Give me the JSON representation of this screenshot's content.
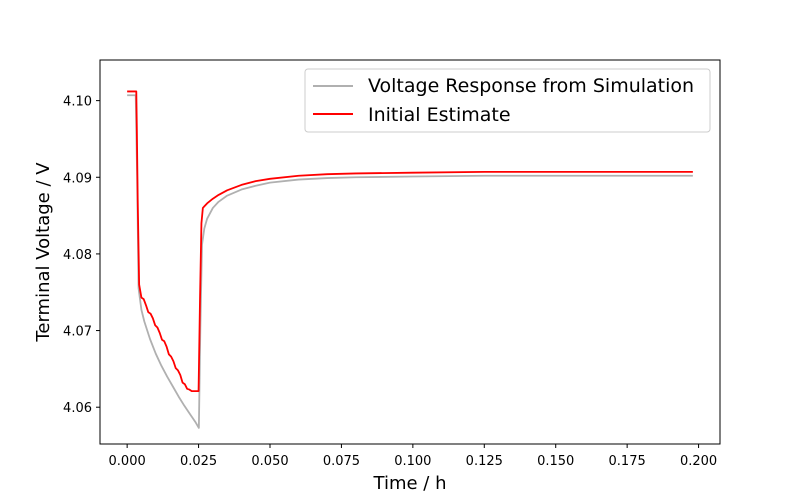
{
  "chart_data": {
    "type": "line",
    "xlabel": "Time / h",
    "ylabel": "Terminal Voltage / V",
    "xlim": [
      -0.0095,
      0.2075
    ],
    "ylim": [
      4.0552,
      4.1053
    ],
    "xticks": [
      0.0,
      0.025,
      0.05,
      0.075,
      0.1,
      0.125,
      0.15,
      0.175,
      0.2
    ],
    "xtick_labels": [
      "0.000",
      "0.025",
      "0.050",
      "0.075",
      "0.100",
      "0.125",
      "0.150",
      "0.175",
      "0.200"
    ],
    "yticks": [
      4.06,
      4.07,
      4.08,
      4.09,
      4.1
    ],
    "ytick_labels": [
      "4.06",
      "4.07",
      "4.08",
      "4.09",
      "4.10"
    ],
    "grid": false,
    "legend_position": "top-right",
    "series": [
      {
        "name": "Voltage Response from Simulation",
        "color": "#b0b0b0",
        "x": [
          0.0,
          0.003,
          0.0035,
          0.004,
          0.005,
          0.006,
          0.008,
          0.01,
          0.012,
          0.014,
          0.016,
          0.018,
          0.02,
          0.022,
          0.024,
          0.0251,
          0.0256,
          0.0262,
          0.027,
          0.028,
          0.03,
          0.032,
          0.035,
          0.04,
          0.045,
          0.05,
          0.06,
          0.07,
          0.08,
          0.1,
          0.125,
          0.15,
          0.175,
          0.198
        ],
        "y": [
          4.1007,
          4.1007,
          4.09,
          4.0755,
          4.0727,
          4.0712,
          4.0689,
          4.067,
          4.0654,
          4.064,
          4.0627,
          4.0614,
          4.0602,
          4.0591,
          4.058,
          4.0573,
          4.07,
          4.0812,
          4.0833,
          4.0846,
          4.086,
          4.0868,
          4.0876,
          4.0884,
          4.0889,
          4.0893,
          4.0897,
          4.0899,
          4.09,
          4.0901,
          4.0902,
          4.0902,
          4.0902,
          4.0902
        ]
      },
      {
        "name": "Initial Estimate",
        "color": "#ff0000",
        "x": [
          0.0,
          0.0032,
          0.0034,
          0.0037,
          0.0042,
          0.005,
          0.0058,
          0.0066,
          0.0074,
          0.0082,
          0.009,
          0.0098,
          0.0106,
          0.0114,
          0.0122,
          0.013,
          0.0138,
          0.0146,
          0.0154,
          0.0162,
          0.017,
          0.0178,
          0.0186,
          0.0194,
          0.0202,
          0.021,
          0.0218,
          0.0226,
          0.0234,
          0.025,
          0.0255,
          0.026,
          0.0265,
          0.027,
          0.028,
          0.03,
          0.032,
          0.035,
          0.04,
          0.045,
          0.05,
          0.06,
          0.07,
          0.08,
          0.1,
          0.125,
          0.15,
          0.175,
          0.198
        ],
        "y": [
          4.1012,
          4.1012,
          4.096,
          4.087,
          4.076,
          4.0743,
          4.0741,
          4.0733,
          4.0724,
          4.0722,
          4.0716,
          4.0707,
          4.0704,
          4.0697,
          4.0688,
          4.0686,
          4.0679,
          4.0669,
          4.0666,
          4.066,
          4.0651,
          4.0648,
          4.0642,
          4.0632,
          4.063,
          4.0624,
          4.0623,
          4.0621,
          4.0621,
          4.0621,
          4.074,
          4.084,
          4.086,
          4.0862,
          4.0866,
          4.0872,
          4.0877,
          4.0883,
          4.089,
          4.0895,
          4.0898,
          4.0902,
          4.0904,
          4.0905,
          4.0906,
          4.0907,
          4.0907,
          4.0907,
          4.0907
        ]
      }
    ]
  }
}
